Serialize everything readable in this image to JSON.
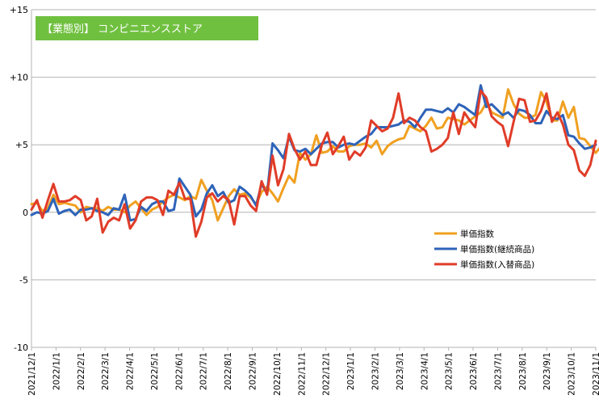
{
  "chart_data": {
    "type": "line",
    "title": "【業態別】 コンビニエンスストア",
    "colors": {
      "badge": "#70c040",
      "grid": "#b3b3b3"
    },
    "ylim": [
      -10,
      15
    ],
    "yticks": [
      {
        "value": 15,
        "label": "+15"
      },
      {
        "value": 10,
        "label": "+10"
      },
      {
        "value": 5,
        "label": "+5"
      },
      {
        "value": 0,
        "label": "0"
      },
      {
        "value": -5,
        "label": "-5"
      },
      {
        "value": -10,
        "label": "-10"
      }
    ],
    "grid": true,
    "legend_position": "right-middle",
    "xlabels": [
      "2021/12/1",
      "2022/1/1",
      "2022/2/1",
      "2022/3/1",
      "2022/4/1",
      "2022/5/1",
      "2022/6/1",
      "2022/7/1",
      "2022/8/1",
      "2022/9/1",
      "2022/10/1",
      "2022/11/1",
      "2022/12/1",
      "2023/1/1",
      "2023/2/1",
      "2023/3/1",
      "2023/4/1",
      "2023/5/1",
      "2023/6/1",
      "2023/7/1",
      "2023/8/1",
      "2023/9/1",
      "2023/10/1",
      "2023/11/1"
    ],
    "x_count": 104,
    "series": [
      {
        "name": "単価指数",
        "color": "#f0a020",
        "values": [
          0.6,
          0.7,
          0.1,
          0.3,
          1.3,
          0.6,
          0.7,
          0.6,
          0.5,
          0.0,
          0.4,
          0.3,
          0.3,
          0.1,
          0.4,
          0.2,
          0.2,
          0.0,
          0.5,
          0.8,
          0.3,
          -0.2,
          0.2,
          0.4,
          0.8,
          1.1,
          1.3,
          1.1,
          0.9,
          1.2,
          1.0,
          2.4,
          1.6,
          0.9,
          -0.6,
          0.3,
          1.2,
          1.7,
          1.3,
          1.4,
          1.1,
          0.6,
          1.5,
          1.9,
          1.4,
          0.8,
          1.8,
          2.7,
          2.2,
          4.4,
          3.9,
          4.3,
          5.7,
          4.4,
          4.5,
          4.9,
          4.5,
          4.5,
          4.9,
          5.0,
          5.0,
          5.1,
          4.8,
          5.3,
          4.3,
          4.9,
          5.2,
          5.4,
          5.5,
          6.4,
          6.2,
          6.0,
          6.4,
          7.0,
          6.2,
          6.3,
          7.0,
          6.9,
          6.8,
          6.5,
          6.8,
          7.1,
          7.4,
          8.1,
          7.4,
          7.2,
          7.0,
          9.1,
          8.0,
          7.3,
          7.0,
          7.0,
          7.2,
          8.9,
          8.2,
          6.8,
          6.8,
          8.2,
          7.0,
          7.8,
          5.5,
          5.4,
          4.9,
          4.4,
          4.9,
          5.5
        ]
      },
      {
        "name": "単価指数(継続商品)",
        "color": "#2e63b8",
        "values": [
          -0.2,
          0.0,
          -0.1,
          0.1,
          1.0,
          -0.1,
          0.1,
          0.2,
          -0.2,
          0.2,
          0.2,
          0.3,
          0.1,
          0.0,
          -0.2,
          0.3,
          0.2,
          1.3,
          -0.6,
          -0.5,
          0.4,
          0.1,
          0.6,
          0.8,
          0.8,
          0.1,
          0.2,
          2.5,
          1.9,
          1.3,
          -0.3,
          0.2,
          1.4,
          2.0,
          1.2,
          1.5,
          0.7,
          0.9,
          1.9,
          1.6,
          1.2,
          0.5,
          2.1,
          1.4,
          5.1,
          4.6,
          4.0,
          5.6,
          4.6,
          4.5,
          4.7,
          4.3,
          4.7,
          5.1,
          5.2,
          5.2,
          4.8,
          5.0,
          5.1,
          5.0,
          5.3,
          5.6,
          5.8,
          6.3,
          6.3,
          6.3,
          6.4,
          6.5,
          6.8,
          6.7,
          6.3,
          7.0,
          7.6,
          7.6,
          7.5,
          7.4,
          7.7,
          7.4,
          8.0,
          7.8,
          7.5,
          7.2,
          9.4,
          7.8,
          8.0,
          7.6,
          7.2,
          7.4,
          7.0,
          7.6,
          7.5,
          7.2,
          6.6,
          6.6,
          7.5,
          7.0,
          6.9,
          7.2,
          5.7,
          5.6,
          5.1,
          4.7,
          4.8,
          5.0
        ]
      },
      {
        "name": "単価指数(入替商品)",
        "color": "#e03c28",
        "values": [
          0.2,
          0.9,
          -0.4,
          0.9,
          2.1,
          0.8,
          0.8,
          0.9,
          1.2,
          0.9,
          -0.6,
          -0.3,
          1.0,
          -1.5,
          -0.7,
          -0.4,
          -0.6,
          0.6,
          -1.2,
          -0.6,
          0.8,
          1.1,
          1.1,
          0.9,
          -0.2,
          1.6,
          1.3,
          2.2,
          1.0,
          1.0,
          -1.8,
          -0.7,
          1.1,
          1.4,
          0.8,
          1.2,
          0.9,
          -0.9,
          1.2,
          1.2,
          0.5,
          0.1,
          2.3,
          1.3,
          4.2,
          2.0,
          3.2,
          5.8,
          4.7,
          3.9,
          4.5,
          3.5,
          3.5,
          5.0,
          5.9,
          4.3,
          4.9,
          5.6,
          3.9,
          4.5,
          4.2,
          4.8,
          6.8,
          6.4,
          6.0,
          6.2,
          7.0,
          8.8,
          6.6,
          7.0,
          6.8,
          6.3,
          6.0,
          4.5,
          4.7,
          5.0,
          5.5,
          7.4,
          5.8,
          7.4,
          6.8,
          6.3,
          9.0,
          8.5,
          7.1,
          6.7,
          6.4,
          4.9,
          6.7,
          8.4,
          8.3,
          6.7,
          6.8,
          7.5,
          8.8,
          6.7,
          7.4,
          6.5,
          5.0,
          4.6,
          3.1,
          2.7,
          3.5,
          5.3
        ]
      }
    ]
  }
}
